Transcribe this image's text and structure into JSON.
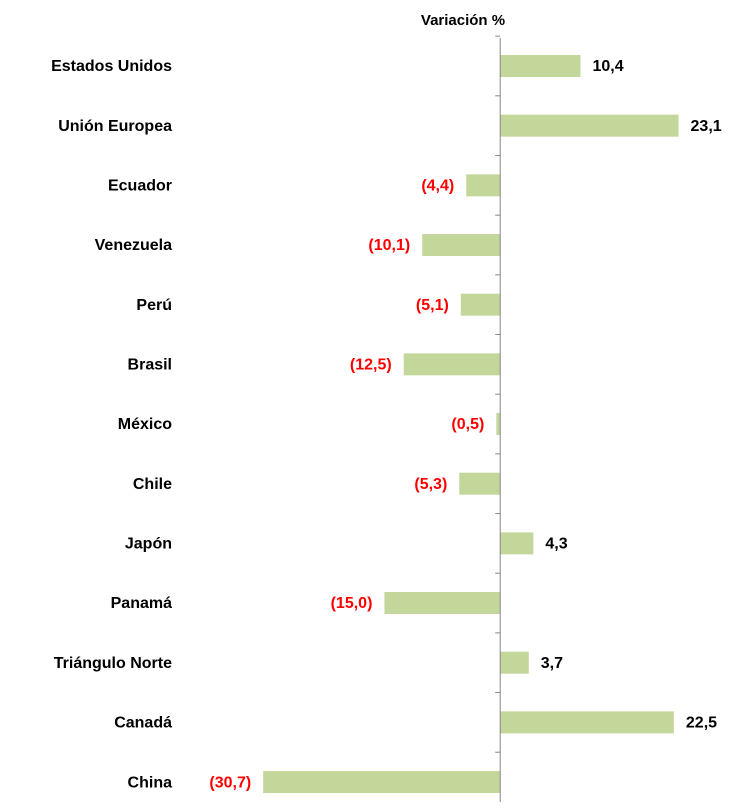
{
  "chart_data": {
    "type": "hbar",
    "title": "Variación %",
    "categories": [
      "Estados Unidos",
      "Unión Europea",
      "Ecuador",
      "Venezuela",
      "Perú",
      "Brasil",
      "México",
      "Chile",
      "Japón",
      "Panamá",
      "Triángulo Norte",
      "Canadá",
      "China"
    ],
    "values": [
      10.4,
      23.1,
      -4.4,
      -10.1,
      -5.1,
      -12.5,
      -0.5,
      -5.3,
      4.3,
      -15.0,
      3.7,
      22.5,
      -30.7
    ],
    "value_labels": [
      "10,4",
      "23,1",
      "(4,4)",
      "(10,1)",
      "(5,1)",
      "(12,5)",
      "(0,5)",
      "(5,3)",
      "4,3",
      "(15,0)",
      "3,7",
      "22,5",
      "(30,7)"
    ],
    "color": "#c4d79b",
    "xlim": [
      -35,
      30
    ]
  }
}
